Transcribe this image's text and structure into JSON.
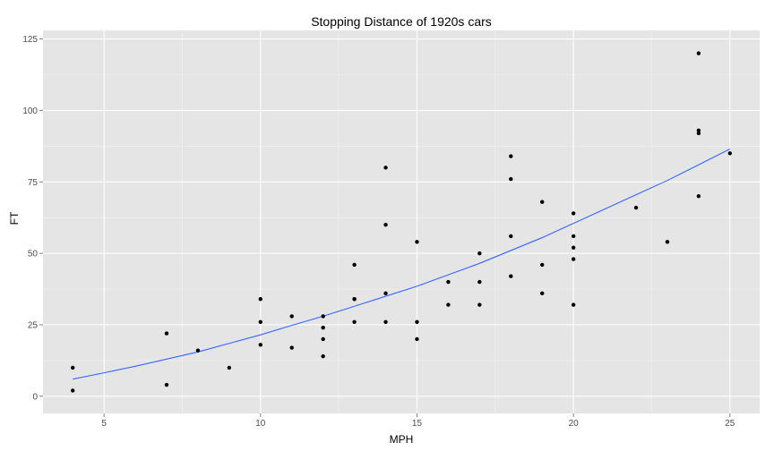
{
  "chart_data": {
    "type": "scatter",
    "title": "Stopping Distance of 1920s cars",
    "xlabel": "MPH",
    "ylabel": "FT",
    "xlim": [
      3.05,
      25.95
    ],
    "ylim": [
      -6,
      128
    ],
    "x_ticks": [
      5,
      10,
      15,
      20,
      25
    ],
    "y_ticks": [
      0,
      25,
      50,
      75,
      100,
      125
    ],
    "x_tick_labels": [
      "5",
      "10",
      "15",
      "20",
      "25"
    ],
    "y_tick_labels": [
      "0",
      "25",
      "50",
      "75",
      "100",
      "125"
    ],
    "grid": true,
    "panel_background": "#e5e5e5",
    "grid_major_color": "#ffffff",
    "point_color": "#000000",
    "trend_color": "#3366ff",
    "points": [
      {
        "x": 4,
        "y": 2
      },
      {
        "x": 4,
        "y": 10
      },
      {
        "x": 7,
        "y": 4
      },
      {
        "x": 7,
        "y": 22
      },
      {
        "x": 8,
        "y": 16
      },
      {
        "x": 9,
        "y": 10
      },
      {
        "x": 10,
        "y": 18
      },
      {
        "x": 10,
        "y": 26
      },
      {
        "x": 10,
        "y": 34
      },
      {
        "x": 11,
        "y": 17
      },
      {
        "x": 11,
        "y": 28
      },
      {
        "x": 12,
        "y": 14
      },
      {
        "x": 12,
        "y": 20
      },
      {
        "x": 12,
        "y": 24
      },
      {
        "x": 12,
        "y": 28
      },
      {
        "x": 13,
        "y": 26
      },
      {
        "x": 13,
        "y": 34
      },
      {
        "x": 13,
        "y": 34
      },
      {
        "x": 13,
        "y": 46
      },
      {
        "x": 14,
        "y": 26
      },
      {
        "x": 14,
        "y": 36
      },
      {
        "x": 14,
        "y": 60
      },
      {
        "x": 14,
        "y": 80
      },
      {
        "x": 15,
        "y": 20
      },
      {
        "x": 15,
        "y": 26
      },
      {
        "x": 15,
        "y": 54
      },
      {
        "x": 16,
        "y": 32
      },
      {
        "x": 16,
        "y": 40
      },
      {
        "x": 17,
        "y": 32
      },
      {
        "x": 17,
        "y": 40
      },
      {
        "x": 17,
        "y": 50
      },
      {
        "x": 18,
        "y": 42
      },
      {
        "x": 18,
        "y": 56
      },
      {
        "x": 18,
        "y": 76
      },
      {
        "x": 18,
        "y": 84
      },
      {
        "x": 19,
        "y": 36
      },
      {
        "x": 19,
        "y": 46
      },
      {
        "x": 19,
        "y": 68
      },
      {
        "x": 20,
        "y": 32
      },
      {
        "x": 20,
        "y": 48
      },
      {
        "x": 20,
        "y": 52
      },
      {
        "x": 20,
        "y": 56
      },
      {
        "x": 20,
        "y": 64
      },
      {
        "x": 22,
        "y": 66
      },
      {
        "x": 23,
        "y": 54
      },
      {
        "x": 24,
        "y": 70
      },
      {
        "x": 24,
        "y": 92
      },
      {
        "x": 24,
        "y": 93
      },
      {
        "x": 24,
        "y": 120
      },
      {
        "x": 25,
        "y": 85
      }
    ],
    "trend_line": [
      {
        "x": 4,
        "y": 6
      },
      {
        "x": 5,
        "y": 8.2
      },
      {
        "x": 6,
        "y": 10.5
      },
      {
        "x": 7,
        "y": 13
      },
      {
        "x": 8,
        "y": 15.5
      },
      {
        "x": 9,
        "y": 18.5
      },
      {
        "x": 10,
        "y": 21.5
      },
      {
        "x": 11,
        "y": 24.8
      },
      {
        "x": 12,
        "y": 28
      },
      {
        "x": 13,
        "y": 31.5
      },
      {
        "x": 14,
        "y": 35
      },
      {
        "x": 15,
        "y": 38.5
      },
      {
        "x": 16,
        "y": 42.5
      },
      {
        "x": 17,
        "y": 46.5
      },
      {
        "x": 18,
        "y": 51
      },
      {
        "x": 19,
        "y": 55.5
      },
      {
        "x": 20,
        "y": 60.5
      },
      {
        "x": 21,
        "y": 65.5
      },
      {
        "x": 22,
        "y": 70.5
      },
      {
        "x": 23,
        "y": 75.5
      },
      {
        "x": 24,
        "y": 81
      },
      {
        "x": 25,
        "y": 86.5
      }
    ]
  }
}
